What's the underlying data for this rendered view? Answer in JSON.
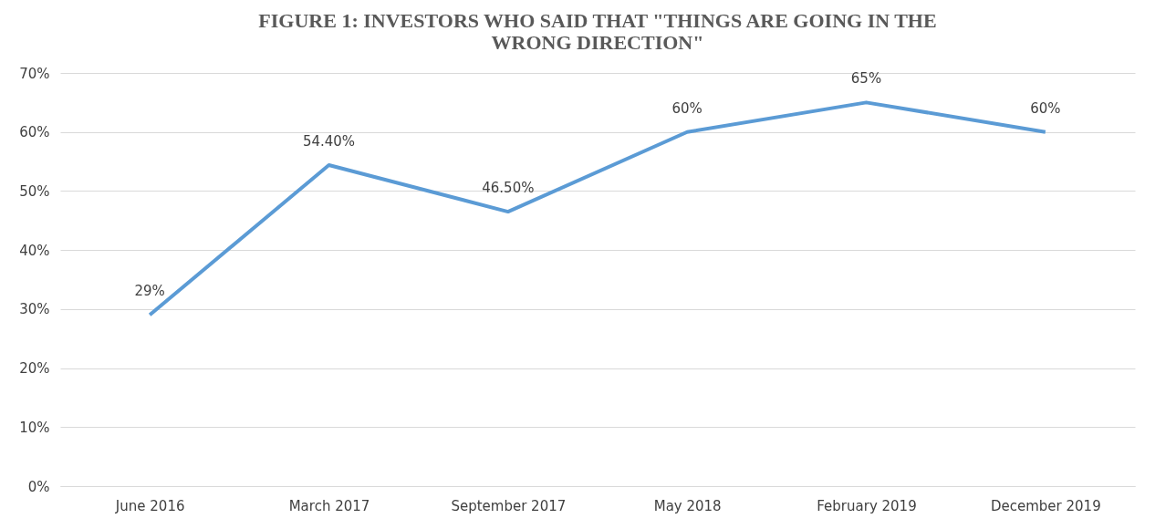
{
  "chart_data": {
    "type": "line",
    "title": "FIGURE 1: INVESTORS WHO SAID THAT \"THINGS ARE GOING IN THE WRONG DIRECTION\"",
    "categories": [
      "June 2016",
      "March 2017",
      "September 2017",
      "May 2018",
      "February 2019",
      "December 2019"
    ],
    "series": [
      {
        "color": "#5b9bd5",
        "values": [
          29,
          54.4,
          46.5,
          60,
          65,
          60
        ],
        "value_labels": [
          "29%",
          "54.40%",
          "46.50%",
          "60%",
          "65%",
          "60%"
        ]
      }
    ],
    "ylim": [
      0,
      70
    ],
    "yticks": [
      {
        "value": 0,
        "label": "0%"
      },
      {
        "value": 10,
        "label": "10%"
      },
      {
        "value": 20,
        "label": "20%"
      },
      {
        "value": 30,
        "label": "30%"
      },
      {
        "value": 40,
        "label": "40%"
      },
      {
        "value": 50,
        "label": "50%"
      },
      {
        "value": 60,
        "label": "60%"
      },
      {
        "value": 70,
        "label": "70%"
      }
    ],
    "grid": "y",
    "marker": "none",
    "line_style": "solid"
  }
}
